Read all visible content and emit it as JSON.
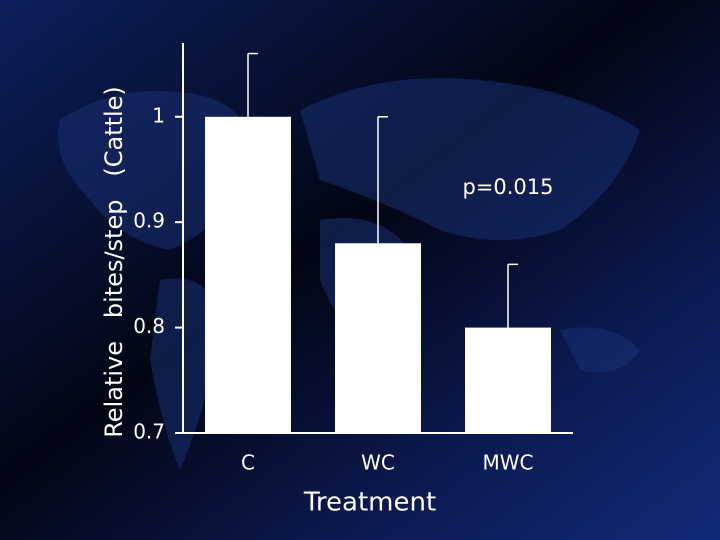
{
  "chart_data": {
    "type": "bar",
    "xlabel": "Treatment",
    "ylabel": "Relative   bites/step   (Cattle)",
    "annotation": "p=0.015",
    "categories": [
      "C",
      "WC",
      "MWC"
    ],
    "values": [
      1.0,
      0.88,
      0.8
    ],
    "errors": [
      0.06,
      0.12,
      0.06
    ],
    "color": "#ffffff",
    "ylim": [
      0.7,
      1.07
    ],
    "yticks": [
      0.7,
      0.8,
      0.9,
      1
    ]
  }
}
